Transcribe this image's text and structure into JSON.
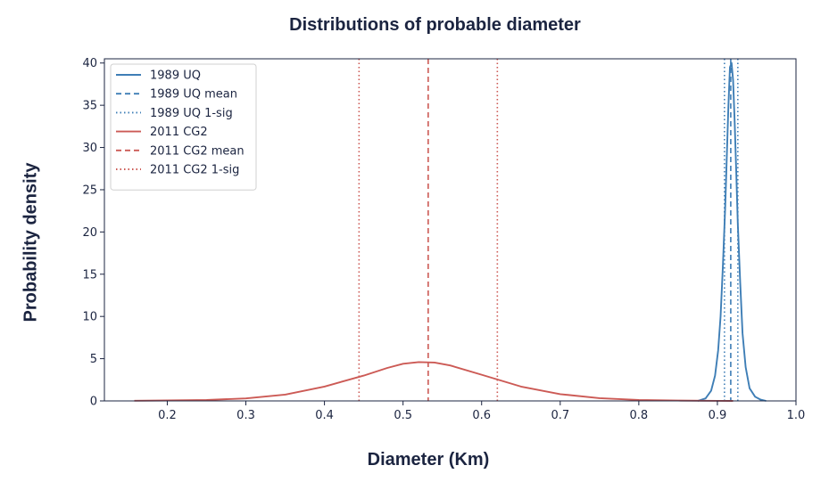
{
  "chart_data": {
    "type": "line",
    "title": "Distributions of probable diameter",
    "xlabel": "Diameter (Km)",
    "ylabel": "Probability density",
    "xlim": [
      0.12,
      1.0
    ],
    "ylim": [
      0,
      40.5
    ],
    "x_ticks": [
      "0.2",
      "0.3",
      "0.4",
      "0.5",
      "0.6",
      "0.7",
      "0.8",
      "0.9",
      "1.0"
    ],
    "y_ticks": [
      "0",
      "5",
      "10",
      "15",
      "20",
      "25",
      "30",
      "35",
      "40"
    ],
    "grid": false,
    "legend_position": "top-left",
    "colors": {
      "uq": "#3e7eb6",
      "cg2": "#cc5a55"
    },
    "series": [
      {
        "name": "1989 UQ",
        "color": "#3e7eb6",
        "style": "solid",
        "x": [
          0.875,
          0.885,
          0.892,
          0.897,
          0.901,
          0.904,
          0.907,
          0.91,
          0.912,
          0.914,
          0.916,
          0.918,
          0.92,
          0.922,
          0.924,
          0.926,
          0.929,
          0.932,
          0.936,
          0.941,
          0.948,
          0.955,
          0.962
        ],
        "y": [
          0,
          0.3,
          1.2,
          3.0,
          6.0,
          10.0,
          16.0,
          23.0,
          29.0,
          35.0,
          39.5,
          40.0,
          38.0,
          33.0,
          27.0,
          21.0,
          14.0,
          8.0,
          4.0,
          1.5,
          0.5,
          0.15,
          0
        ]
      },
      {
        "name": "2011 CG2",
        "color": "#cc5a55",
        "style": "solid",
        "x": [
          0.158,
          0.2,
          0.25,
          0.3,
          0.35,
          0.4,
          0.45,
          0.48,
          0.5,
          0.52,
          0.54,
          0.56,
          0.6,
          0.65,
          0.7,
          0.75,
          0.8,
          0.85,
          0.9,
          0.92
        ],
        "y": [
          0.02,
          0.05,
          0.12,
          0.3,
          0.75,
          1.7,
          3.0,
          3.9,
          4.4,
          4.6,
          4.55,
          4.2,
          3.1,
          1.7,
          0.8,
          0.33,
          0.12,
          0.04,
          0.01,
          0
        ]
      }
    ],
    "vlines": [
      {
        "name": "1989 UQ mean",
        "x": 0.917,
        "color": "#3e7eb6",
        "style": "dashed"
      },
      {
        "name": "1989 UQ 1-sig",
        "x": 0.909,
        "color": "#3e7eb6",
        "style": "dotted"
      },
      {
        "name": "1989 UQ 1-sig",
        "x": 0.926,
        "color": "#3e7eb6",
        "style": "dotted"
      },
      {
        "name": "2011 CG2 mean",
        "x": 0.532,
        "color": "#cc5a55",
        "style": "dashed"
      },
      {
        "name": "2011 CG2 1-sig",
        "x": 0.444,
        "color": "#cc5a55",
        "style": "dotted"
      },
      {
        "name": "2011 CG2 1-sig",
        "x": 0.62,
        "color": "#cc5a55",
        "style": "dotted"
      }
    ],
    "legend": [
      {
        "label": "1989 UQ",
        "color": "#3e7eb6",
        "style": "solid"
      },
      {
        "label": "1989 UQ mean",
        "color": "#3e7eb6",
        "style": "dashed"
      },
      {
        "label": "1989 UQ 1-sig",
        "color": "#3e7eb6",
        "style": "dotted"
      },
      {
        "label": "2011 CG2",
        "color": "#cc5a55",
        "style": "solid"
      },
      {
        "label": "2011 CG2 mean",
        "color": "#cc5a55",
        "style": "dashed"
      },
      {
        "label": "2011 CG2 1-sig",
        "color": "#cc5a55",
        "style": "dotted"
      }
    ]
  }
}
